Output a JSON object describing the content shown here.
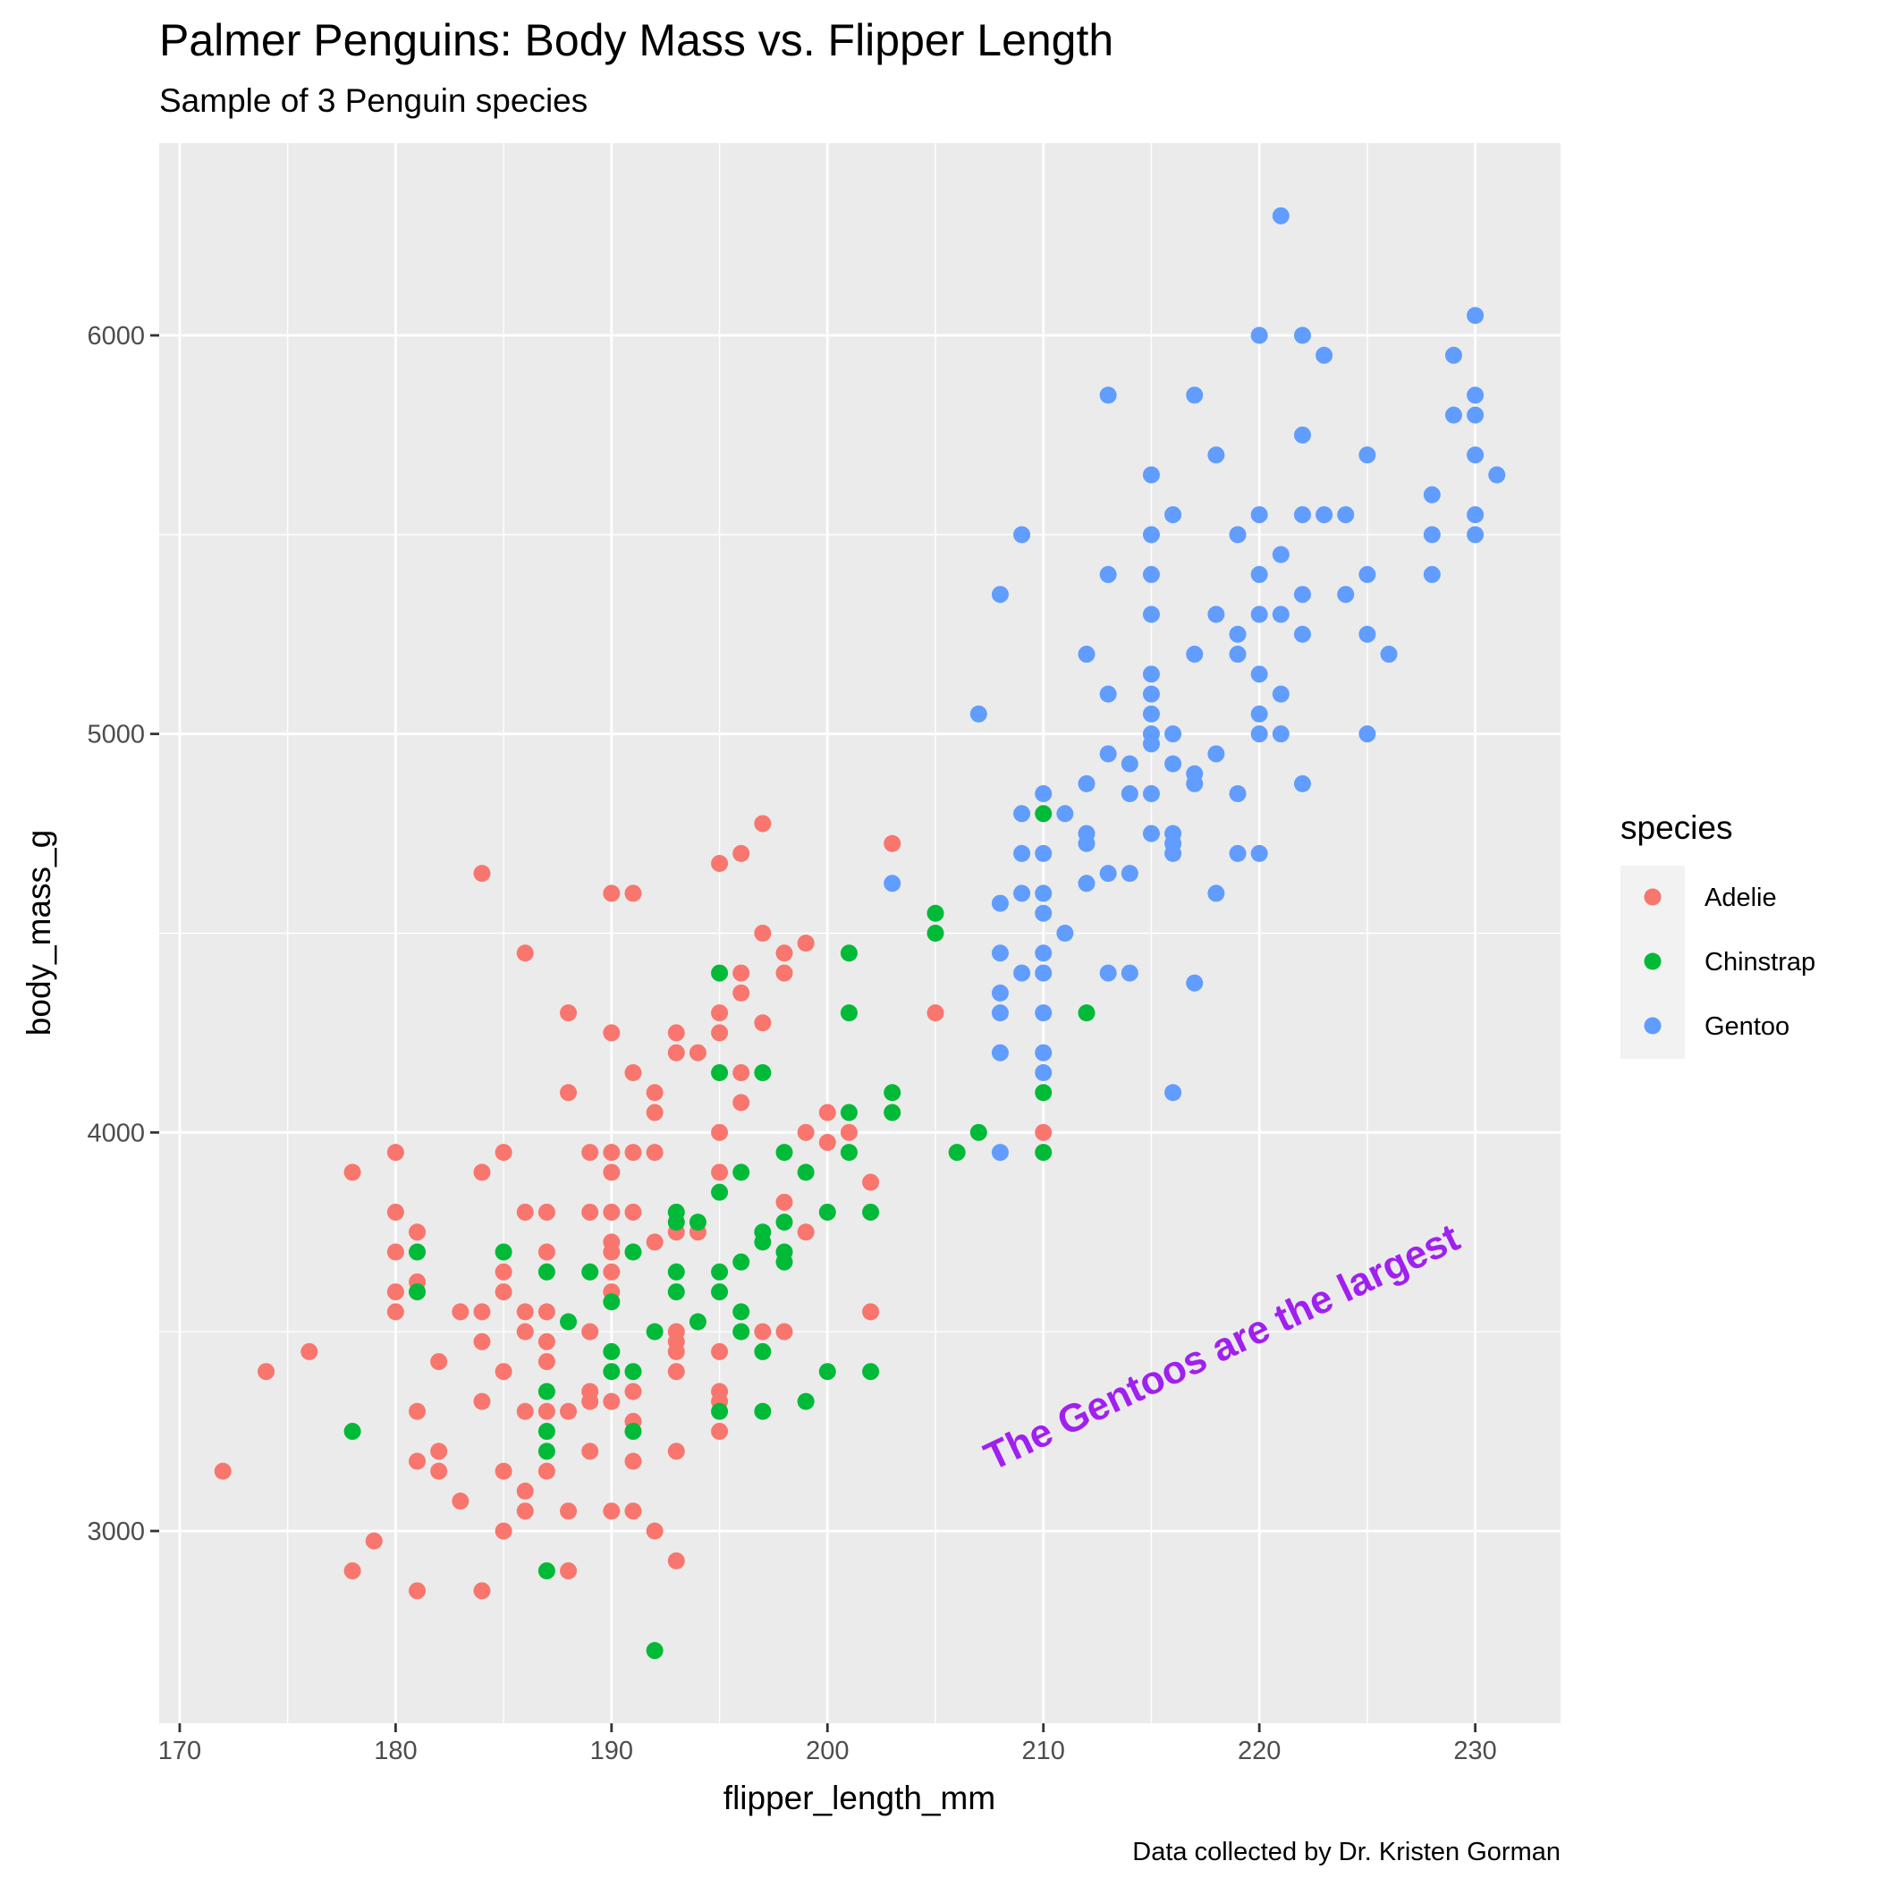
{
  "chart_data": {
    "type": "scatter",
    "title": "Palmer Penguins: Body Mass vs. Flipper Length",
    "subtitle": "Sample of 3 Penguin species",
    "xlabel": "flipper_length_mm",
    "ylabel": "body_mass_g",
    "caption": "Data collected by Dr. Kristen Gorman",
    "annotation": "The Gentoos are the largest",
    "annotation_color": "#a020f0",
    "xlim": [
      169.05,
      233.95
    ],
    "ylim": [
      2517.5,
      6482.5
    ],
    "xticks": [
      170,
      180,
      190,
      200,
      210,
      220,
      230
    ],
    "yticks": [
      3000,
      4000,
      5000,
      6000
    ],
    "grid": true,
    "panel_background": "#ebebeb",
    "legend": {
      "title": "species",
      "position": "right"
    },
    "series": [
      {
        "name": "Adelie",
        "color": "#f8766d",
        "points": [
          [
            172,
            3150
          ],
          [
            174,
            3400
          ],
          [
            176,
            3450
          ],
          [
            178,
            3900
          ],
          [
            178,
            2900
          ],
          [
            179,
            2975
          ],
          [
            180,
            3950
          ],
          [
            180,
            3800
          ],
          [
            180,
            3700
          ],
          [
            180,
            3600
          ],
          [
            180,
            3550
          ],
          [
            181,
            3750
          ],
          [
            181,
            3625
          ],
          [
            181,
            3300
          ],
          [
            181,
            3175
          ],
          [
            181,
            2850
          ],
          [
            182,
            3425
          ],
          [
            182,
            3200
          ],
          [
            182,
            3150
          ],
          [
            183,
            3550
          ],
          [
            183,
            3075
          ],
          [
            184,
            4650
          ],
          [
            184,
            3900
          ],
          [
            184,
            3550
          ],
          [
            184,
            3475
          ],
          [
            184,
            3325
          ],
          [
            184,
            2850
          ],
          [
            185,
            3950
          ],
          [
            185,
            3650
          ],
          [
            185,
            3600
          ],
          [
            185,
            3400
          ],
          [
            185,
            3150
          ],
          [
            185,
            3000
          ],
          [
            186,
            4450
          ],
          [
            186,
            3800
          ],
          [
            186,
            3550
          ],
          [
            186,
            3500
          ],
          [
            186,
            3300
          ],
          [
            186,
            3100
          ],
          [
            186,
            3050
          ],
          [
            187,
            3800
          ],
          [
            187,
            3700
          ],
          [
            187,
            3550
          ],
          [
            187,
            3475
          ],
          [
            187,
            3425
          ],
          [
            187,
            3300
          ],
          [
            187,
            3150
          ],
          [
            188,
            4300
          ],
          [
            188,
            4100
          ],
          [
            188,
            3300
          ],
          [
            188,
            3050
          ],
          [
            188,
            2900
          ],
          [
            189,
            3950
          ],
          [
            189,
            3800
          ],
          [
            189,
            3500
          ],
          [
            189,
            3350
          ],
          [
            189,
            3325
          ],
          [
            189,
            3200
          ],
          [
            190,
            4600
          ],
          [
            190,
            4250
          ],
          [
            190,
            3950
          ],
          [
            190,
            3900
          ],
          [
            190,
            3800
          ],
          [
            190,
            3725
          ],
          [
            190,
            3700
          ],
          [
            190,
            3650
          ],
          [
            190,
            3600
          ],
          [
            190,
            3325
          ],
          [
            190,
            3050
          ],
          [
            191,
            4600
          ],
          [
            191,
            4150
          ],
          [
            191,
            3950
          ],
          [
            191,
            3800
          ],
          [
            191,
            3350
          ],
          [
            191,
            3275
          ],
          [
            191,
            3175
          ],
          [
            191,
            3050
          ],
          [
            192,
            4100
          ],
          [
            192,
            4050
          ],
          [
            192,
            3950
          ],
          [
            192,
            3725
          ],
          [
            192,
            3000
          ],
          [
            193,
            4250
          ],
          [
            193,
            4200
          ],
          [
            193,
            3750
          ],
          [
            193,
            3500
          ],
          [
            193,
            3475
          ],
          [
            193,
            3450
          ],
          [
            193,
            3400
          ],
          [
            193,
            3200
          ],
          [
            193,
            2925
          ],
          [
            194,
            4200
          ],
          [
            194,
            3750
          ],
          [
            195,
            4675
          ],
          [
            195,
            4300
          ],
          [
            195,
            4250
          ],
          [
            195,
            4000
          ],
          [
            195,
            3900
          ],
          [
            195,
            3450
          ],
          [
            195,
            3350
          ],
          [
            195,
            3325
          ],
          [
            195,
            3250
          ],
          [
            196,
            4700
          ],
          [
            196,
            4400
          ],
          [
            196,
            4350
          ],
          [
            196,
            4150
          ],
          [
            196,
            4075
          ],
          [
            197,
            4775
          ],
          [
            197,
            4500
          ],
          [
            197,
            4275
          ],
          [
            197,
            3500
          ],
          [
            198,
            4450
          ],
          [
            198,
            4400
          ],
          [
            198,
            3825
          ],
          [
            198,
            3500
          ],
          [
            199,
            4475
          ],
          [
            199,
            4000
          ],
          [
            199,
            3750
          ],
          [
            200,
            4050
          ],
          [
            200,
            3975
          ],
          [
            201,
            4000
          ],
          [
            202,
            3875
          ],
          [
            202,
            3550
          ],
          [
            203,
            4725
          ],
          [
            205,
            4300
          ],
          [
            210,
            4000
          ]
        ]
      },
      {
        "name": "Chinstrap",
        "color": "#00ba38",
        "points": [
          [
            178,
            3250
          ],
          [
            181,
            3700
          ],
          [
            181,
            3600
          ],
          [
            185,
            3700
          ],
          [
            187,
            3650
          ],
          [
            187,
            3350
          ],
          [
            187,
            3250
          ],
          [
            187,
            3200
          ],
          [
            187,
            2900
          ],
          [
            188,
            3525
          ],
          [
            189,
            3650
          ],
          [
            190,
            3575
          ],
          [
            190,
            3450
          ],
          [
            190,
            3400
          ],
          [
            191,
            3700
          ],
          [
            191,
            3400
          ],
          [
            191,
            3250
          ],
          [
            192,
            3500
          ],
          [
            192,
            2700
          ],
          [
            193,
            3800
          ],
          [
            193,
            3775
          ],
          [
            193,
            3650
          ],
          [
            193,
            3600
          ],
          [
            194,
            3775
          ],
          [
            194,
            3525
          ],
          [
            195,
            4400
          ],
          [
            195,
            4150
          ],
          [
            195,
            3850
          ],
          [
            195,
            3650
          ],
          [
            195,
            3600
          ],
          [
            195,
            3300
          ],
          [
            196,
            3900
          ],
          [
            196,
            3675
          ],
          [
            196,
            3550
          ],
          [
            196,
            3500
          ],
          [
            197,
            4150
          ],
          [
            197,
            3750
          ],
          [
            197,
            3725
          ],
          [
            197,
            3450
          ],
          [
            197,
            3300
          ],
          [
            198,
            3950
          ],
          [
            198,
            3775
          ],
          [
            198,
            3700
          ],
          [
            198,
            3675
          ],
          [
            199,
            3900
          ],
          [
            199,
            3325
          ],
          [
            200,
            3800
          ],
          [
            200,
            3400
          ],
          [
            201,
            4450
          ],
          [
            201,
            4300
          ],
          [
            201,
            4050
          ],
          [
            201,
            3950
          ],
          [
            202,
            3800
          ],
          [
            202,
            3400
          ],
          [
            203,
            4100
          ],
          [
            203,
            4050
          ],
          [
            205,
            4550
          ],
          [
            205,
            4500
          ],
          [
            206,
            3950
          ],
          [
            207,
            4000
          ],
          [
            210,
            4800
          ],
          [
            210,
            4100
          ],
          [
            210,
            3950
          ],
          [
            212,
            4300
          ]
        ]
      },
      {
        "name": "Gentoo",
        "color": "#619cff",
        "points": [
          [
            203,
            4625
          ],
          [
            207,
            5050
          ],
          [
            208,
            5350
          ],
          [
            208,
            4575
          ],
          [
            208,
            4450
          ],
          [
            208,
            4350
          ],
          [
            208,
            4300
          ],
          [
            208,
            4200
          ],
          [
            208,
            3950
          ],
          [
            209,
            5500
          ],
          [
            209,
            4800
          ],
          [
            209,
            4700
          ],
          [
            209,
            4600
          ],
          [
            209,
            4400
          ],
          [
            210,
            4850
          ],
          [
            210,
            4700
          ],
          [
            210,
            4600
          ],
          [
            210,
            4550
          ],
          [
            210,
            4450
          ],
          [
            210,
            4400
          ],
          [
            210,
            4300
          ],
          [
            210,
            4200
          ],
          [
            210,
            4150
          ],
          [
            211,
            4800
          ],
          [
            211,
            4500
          ],
          [
            212,
            5200
          ],
          [
            212,
            4875
          ],
          [
            212,
            4750
          ],
          [
            212,
            4725
          ],
          [
            212,
            4625
          ],
          [
            213,
            5850
          ],
          [
            213,
            5400
          ],
          [
            213,
            5100
          ],
          [
            213,
            4950
          ],
          [
            213,
            4650
          ],
          [
            213,
            4400
          ],
          [
            214,
            4925
          ],
          [
            214,
            4850
          ],
          [
            214,
            4650
          ],
          [
            214,
            4400
          ],
          [
            215,
            5650
          ],
          [
            215,
            5500
          ],
          [
            215,
            5400
          ],
          [
            215,
            5300
          ],
          [
            215,
            5150
          ],
          [
            215,
            5100
          ],
          [
            215,
            5050
          ],
          [
            215,
            5000
          ],
          [
            215,
            4975
          ],
          [
            215,
            4850
          ],
          [
            215,
            4750
          ],
          [
            216,
            5550
          ],
          [
            216,
            5000
          ],
          [
            216,
            4925
          ],
          [
            216,
            4750
          ],
          [
            216,
            4725
          ],
          [
            216,
            4700
          ],
          [
            216,
            4100
          ],
          [
            217,
            5850
          ],
          [
            217,
            5200
          ],
          [
            217,
            4900
          ],
          [
            217,
            4875
          ],
          [
            217,
            4375
          ],
          [
            218,
            5700
          ],
          [
            218,
            5300
          ],
          [
            218,
            4950
          ],
          [
            218,
            4600
          ],
          [
            219,
            5500
          ],
          [
            219,
            5250
          ],
          [
            219,
            5200
          ],
          [
            219,
            4850
          ],
          [
            219,
            4700
          ],
          [
            220,
            6000
          ],
          [
            220,
            5550
          ],
          [
            220,
            5400
          ],
          [
            220,
            5300
          ],
          [
            220,
            5150
          ],
          [
            220,
            5050
          ],
          [
            220,
            5000
          ],
          [
            220,
            4700
          ],
          [
            221,
            6300
          ],
          [
            221,
            5450
          ],
          [
            221,
            5300
          ],
          [
            221,
            5100
          ],
          [
            221,
            5000
          ],
          [
            222,
            6000
          ],
          [
            222,
            5750
          ],
          [
            222,
            5550
          ],
          [
            222,
            5350
          ],
          [
            222,
            5250
          ],
          [
            222,
            4875
          ],
          [
            223,
            5950
          ],
          [
            223,
            5550
          ],
          [
            224,
            5550
          ],
          [
            224,
            5350
          ],
          [
            225,
            5700
          ],
          [
            225,
            5400
          ],
          [
            225,
            5250
          ],
          [
            225,
            5000
          ],
          [
            226,
            5200
          ],
          [
            228,
            5600
          ],
          [
            228,
            5500
          ],
          [
            228,
            5400
          ],
          [
            229,
            5950
          ],
          [
            229,
            5800
          ],
          [
            230,
            6050
          ],
          [
            230,
            5850
          ],
          [
            230,
            5800
          ],
          [
            230,
            5700
          ],
          [
            230,
            5550
          ],
          [
            230,
            5500
          ],
          [
            231,
            5650
          ]
        ]
      }
    ]
  }
}
